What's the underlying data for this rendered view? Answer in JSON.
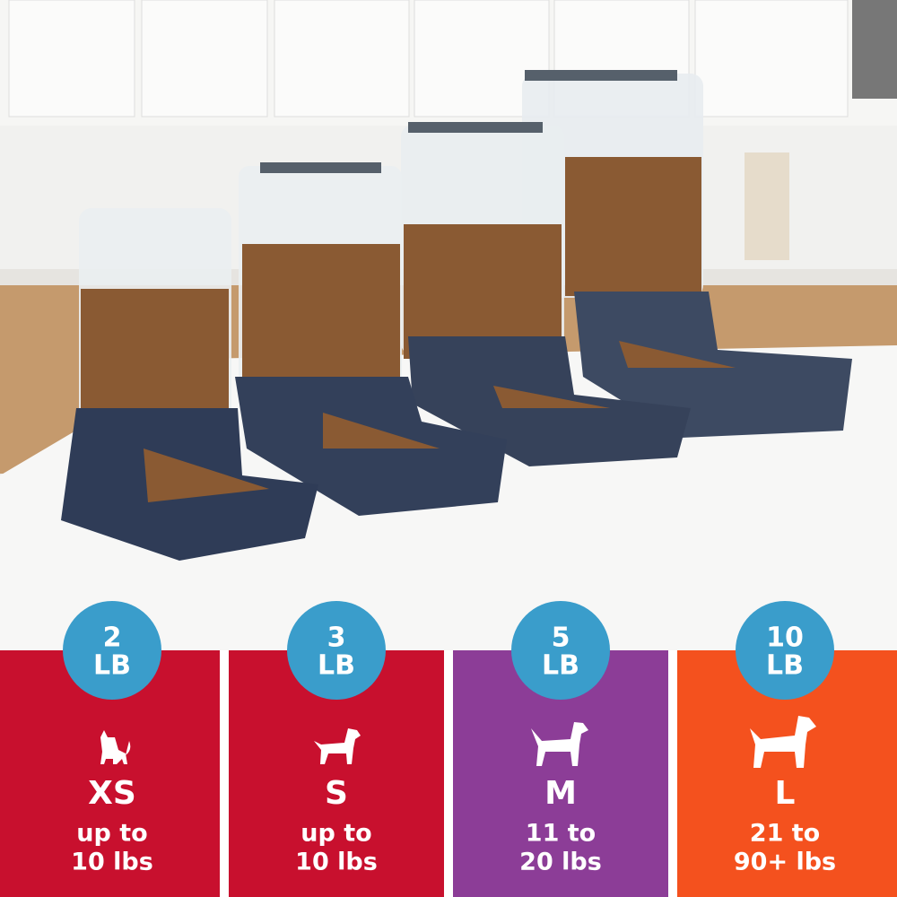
{
  "panels": [
    {
      "capacity": "2",
      "unit": "LB",
      "size": "XS",
      "weight": [
        "up to",
        "10 lbs"
      ]
    },
    {
      "capacity": "3",
      "unit": "LB",
      "size": "S",
      "weight": [
        "up to",
        "10 lbs"
      ]
    },
    {
      "capacity": "5",
      "unit": "LB",
      "size": "M",
      "weight": [
        "11 to",
        "20 lbs"
      ]
    },
    {
      "capacity": "10",
      "unit": "LB",
      "size": "L",
      "weight": [
        "21 to",
        "90+ lbs"
      ]
    }
  ]
}
